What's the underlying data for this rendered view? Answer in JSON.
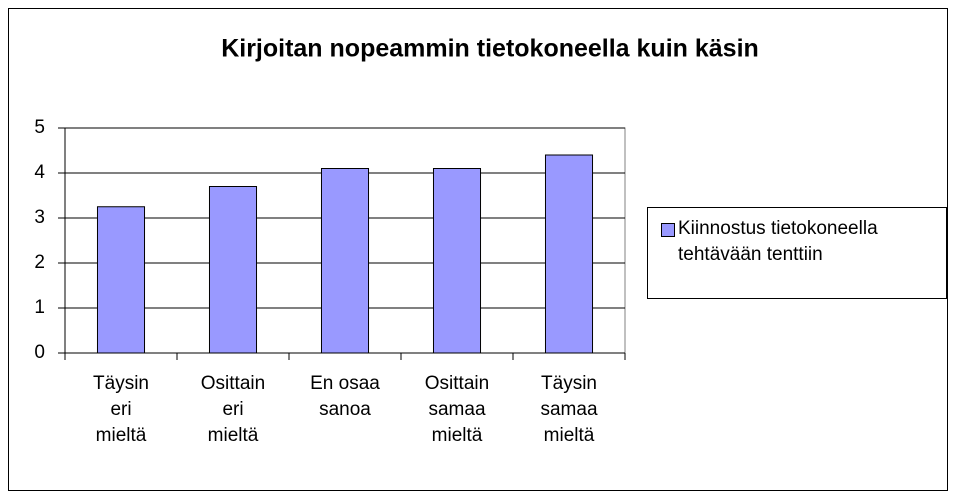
{
  "chart_data": {
    "type": "bar",
    "title": "Kirjoitan nopeammin tietokoneella kuin käsin",
    "categories": [
      "Täysin eri mieltä",
      "Osittain eri mieltä",
      "En osaa sanoa",
      "Osittain samaa mieltä",
      "Täysin samaa mieltä"
    ],
    "series": [
      {
        "name": "Kiinnostus tietokoneella tehtävään tenttiin",
        "color": "#9999ff",
        "values": [
          3.25,
          3.7,
          4.1,
          4.1,
          4.4
        ]
      }
    ],
    "ylim": [
      0,
      5
    ],
    "yticks": [
      0,
      1,
      2,
      3,
      4,
      5
    ],
    "grid": true,
    "legend": "right"
  }
}
